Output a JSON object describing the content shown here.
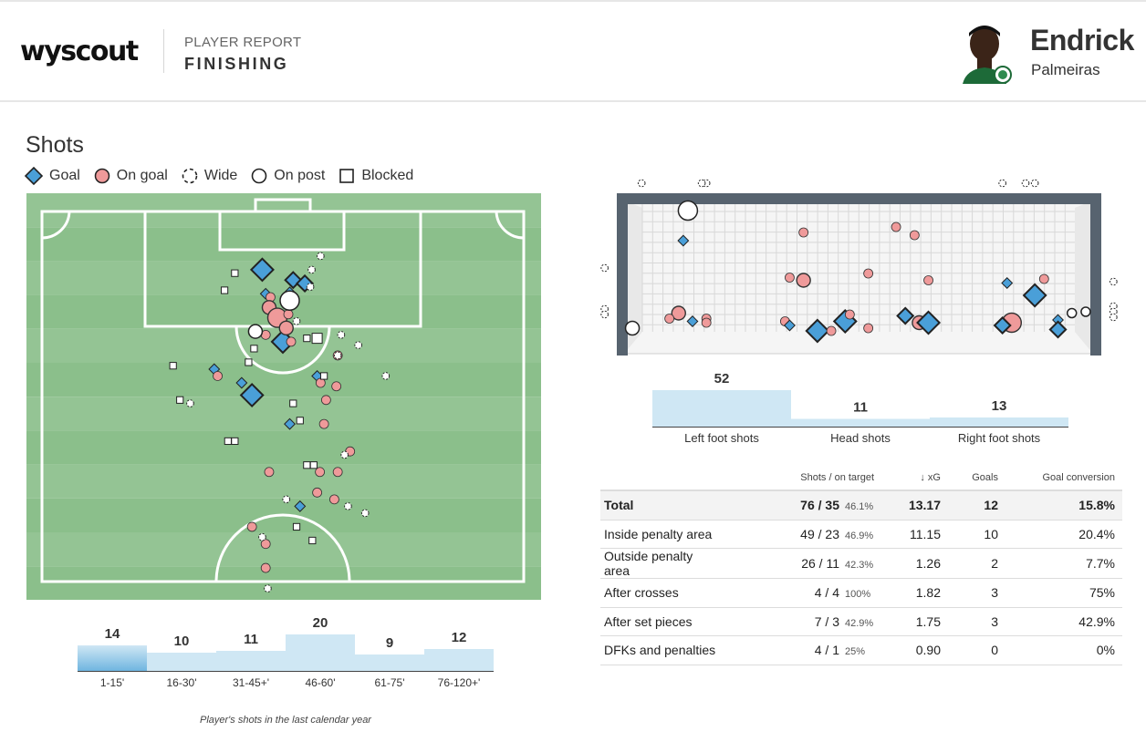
{
  "header": {
    "logo_text": "wyscout",
    "report_label": "PLAYER REPORT",
    "report_subtitle": "FINISHING",
    "player_name": "Endrick",
    "team": "Palmeiras"
  },
  "section_title": "Shots",
  "legend": [
    {
      "key": "goal",
      "label": "Goal"
    },
    {
      "key": "on_goal",
      "label": "On goal"
    },
    {
      "key": "wide",
      "label": "Wide"
    },
    {
      "key": "on_post",
      "label": "On post"
    },
    {
      "key": "blocked",
      "label": "Blocked"
    }
  ],
  "colors": {
    "goal": "#4a9fd8",
    "on_goal": "#ef9a9a",
    "pitch_light": "#94c494",
    "pitch_dark": "#8bbf8b",
    "frame": "#57636f",
    "bar_light": "#cfe7f4",
    "bar_dark": "#6fb5e0"
  },
  "chart_data": [
    {
      "type": "scatter",
      "title": "Shots",
      "note": "shot map on pitch; x = distance from goal line (m), y = lateral position (m, 0 = centre)",
      "shots": [
        {
          "x": 8.5,
          "y": -3.0,
          "outcome": "goal",
          "size": "l"
        },
        {
          "x": 10.0,
          "y": 1.5,
          "outcome": "goal",
          "size": "m"
        },
        {
          "x": 10.5,
          "y": 3.2,
          "outcome": "goal",
          "size": "m"
        },
        {
          "x": 12.0,
          "y": -2.5,
          "outcome": "goal",
          "size": "s"
        },
        {
          "x": 11.8,
          "y": 1.0,
          "outcome": "goal",
          "size": "s"
        },
        {
          "x": 19.0,
          "y": 0.0,
          "outcome": "goal",
          "size": "l"
        },
        {
          "x": 25.0,
          "y": -6.0,
          "outcome": "goal",
          "size": "s"
        },
        {
          "x": 26.8,
          "y": -4.5,
          "outcome": "goal",
          "size": "l"
        },
        {
          "x": 23.0,
          "y": -10.0,
          "outcome": "goal",
          "size": "s"
        },
        {
          "x": 24.0,
          "y": 5.0,
          "outcome": "goal",
          "size": "s"
        },
        {
          "x": 31.0,
          "y": 1.0,
          "outcome": "goal",
          "size": "s"
        },
        {
          "x": 43.0,
          "y": 2.5,
          "outcome": "goal",
          "size": "s"
        },
        {
          "x": 12.5,
          "y": -1.8,
          "outcome": "on_goal",
          "size": "s"
        },
        {
          "x": 14.0,
          "y": -2.0,
          "outcome": "on_goal",
          "size": "m"
        },
        {
          "x": 15.5,
          "y": -0.8,
          "outcome": "on_goal",
          "size": "l"
        },
        {
          "x": 17.0,
          "y": 0.5,
          "outcome": "on_goal",
          "size": "m"
        },
        {
          "x": 15.0,
          "y": 0.8,
          "outcome": "on_goal",
          "size": "s"
        },
        {
          "x": 18.0,
          "y": -2.5,
          "outcome": "on_goal",
          "size": "s"
        },
        {
          "x": 19.0,
          "y": 1.2,
          "outcome": "on_goal",
          "size": "s"
        },
        {
          "x": 21.0,
          "y": 8.0,
          "outcome": "on_goal",
          "size": "s"
        },
        {
          "x": 24.0,
          "y": -9.5,
          "outcome": "on_goal",
          "size": "s"
        },
        {
          "x": 25.0,
          "y": 5.5,
          "outcome": "on_goal",
          "size": "s"
        },
        {
          "x": 25.5,
          "y": 7.8,
          "outcome": "on_goal",
          "size": "s"
        },
        {
          "x": 27.5,
          "y": 6.3,
          "outcome": "on_goal",
          "size": "s"
        },
        {
          "x": 31.0,
          "y": 6.0,
          "outcome": "on_goal",
          "size": "s"
        },
        {
          "x": 35.0,
          "y": 9.8,
          "outcome": "on_goal",
          "size": "s"
        },
        {
          "x": 38.0,
          "y": -2.0,
          "outcome": "on_goal",
          "size": "s"
        },
        {
          "x": 38.0,
          "y": 5.4,
          "outcome": "on_goal",
          "size": "s"
        },
        {
          "x": 38.0,
          "y": 8.0,
          "outcome": "on_goal",
          "size": "s"
        },
        {
          "x": 41.0,
          "y": 5.0,
          "outcome": "on_goal",
          "size": "s"
        },
        {
          "x": 42.0,
          "y": 7.5,
          "outcome": "on_goal",
          "size": "s"
        },
        {
          "x": 46.0,
          "y": -4.5,
          "outcome": "on_goal",
          "size": "s"
        },
        {
          "x": 48.5,
          "y": -2.5,
          "outcome": "on_goal",
          "size": "s"
        },
        {
          "x": 52.0,
          "y": -2.5,
          "outcome": "on_goal",
          "size": "s"
        },
        {
          "x": 13.0,
          "y": 1.0,
          "outcome": "on_post",
          "size": "l"
        },
        {
          "x": 17.5,
          "y": -4.0,
          "outcome": "on_post",
          "size": "m"
        },
        {
          "x": 6.5,
          "y": 5.5,
          "outcome": "wide",
          "size": "s"
        },
        {
          "x": 8.5,
          "y": 4.2,
          "outcome": "wide",
          "size": "s"
        },
        {
          "x": 11.0,
          "y": 4.0,
          "outcome": "wide",
          "size": "s"
        },
        {
          "x": 16.0,
          "y": 2.0,
          "outcome": "wide",
          "size": "s"
        },
        {
          "x": 18.0,
          "y": 8.5,
          "outcome": "wide",
          "size": "s"
        },
        {
          "x": 19.5,
          "y": 11.0,
          "outcome": "wide",
          "size": "s"
        },
        {
          "x": 21.0,
          "y": 8.0,
          "outcome": "wide",
          "size": "s"
        },
        {
          "x": 24.0,
          "y": 15.0,
          "outcome": "wide",
          "size": "s"
        },
        {
          "x": 28.0,
          "y": -13.5,
          "outcome": "wide",
          "size": "s"
        },
        {
          "x": 35.5,
          "y": 9.0,
          "outcome": "wide",
          "size": "s"
        },
        {
          "x": 42.0,
          "y": 0.5,
          "outcome": "wide",
          "size": "s"
        },
        {
          "x": 43.0,
          "y": 9.5,
          "outcome": "wide",
          "size": "s"
        },
        {
          "x": 44.0,
          "y": 12.0,
          "outcome": "wide",
          "size": "s"
        },
        {
          "x": 47.5,
          "y": -3.0,
          "outcome": "wide",
          "size": "s"
        },
        {
          "x": 55.0,
          "y": -2.2,
          "outcome": "wide",
          "size": "s"
        },
        {
          "x": 9.0,
          "y": -7.0,
          "outcome": "blocked",
          "size": "s"
        },
        {
          "x": 11.5,
          "y": -8.5,
          "outcome": "blocked",
          "size": "s"
        },
        {
          "x": 18.5,
          "y": 3.5,
          "outcome": "blocked",
          "size": "s"
        },
        {
          "x": 18.5,
          "y": 5.0,
          "outcome": "blocked",
          "size": "m"
        },
        {
          "x": 20.0,
          "y": -4.2,
          "outcome": "blocked",
          "size": "s"
        },
        {
          "x": 22.0,
          "y": -5.0,
          "outcome": "blocked",
          "size": "s"
        },
        {
          "x": 22.5,
          "y": -16.0,
          "outcome": "blocked",
          "size": "s"
        },
        {
          "x": 24.0,
          "y": 6.0,
          "outcome": "blocked",
          "size": "s"
        },
        {
          "x": 27.5,
          "y": -15.0,
          "outcome": "blocked",
          "size": "s"
        },
        {
          "x": 28.0,
          "y": 1.5,
          "outcome": "blocked",
          "size": "s"
        },
        {
          "x": 30.5,
          "y": 2.5,
          "outcome": "blocked",
          "size": "s"
        },
        {
          "x": 33.5,
          "y": -8.0,
          "outcome": "blocked",
          "size": "s"
        },
        {
          "x": 33.5,
          "y": -7.0,
          "outcome": "blocked",
          "size": "s"
        },
        {
          "x": 37.0,
          "y": 3.5,
          "outcome": "blocked",
          "size": "s"
        },
        {
          "x": 37.0,
          "y": 4.5,
          "outcome": "blocked",
          "size": "s"
        },
        {
          "x": 46.0,
          "y": 2.0,
          "outcome": "blocked",
          "size": "s"
        },
        {
          "x": 48.0,
          "y": 4.3,
          "outcome": "blocked",
          "size": "s"
        }
      ]
    },
    {
      "type": "scatter",
      "note": "shot placement in goal mouth; x = 0..1 across goal, y = 0..1 height",
      "shots": [
        {
          "x": 0.13,
          "y": 0.94,
          "outcome": "on_post",
          "size": "l"
        },
        {
          "x": 0.12,
          "y": 0.72,
          "outcome": "goal",
          "size": "s"
        },
        {
          "x": 0.38,
          "y": 0.78,
          "outcome": "on_goal",
          "size": "s"
        },
        {
          "x": 0.58,
          "y": 0.82,
          "outcome": "on_goal",
          "size": "s"
        },
        {
          "x": 0.62,
          "y": 0.76,
          "outcome": "on_goal",
          "size": "s"
        },
        {
          "x": 0.35,
          "y": 0.45,
          "outcome": "on_goal",
          "size": "s"
        },
        {
          "x": 0.38,
          "y": 0.43,
          "outcome": "on_goal",
          "size": "m"
        },
        {
          "x": 0.52,
          "y": 0.48,
          "outcome": "on_goal",
          "size": "s"
        },
        {
          "x": 0.65,
          "y": 0.43,
          "outcome": "on_goal",
          "size": "s"
        },
        {
          "x": 0.82,
          "y": 0.41,
          "outcome": "goal",
          "size": "s"
        },
        {
          "x": 0.9,
          "y": 0.44,
          "outcome": "on_goal",
          "size": "s"
        },
        {
          "x": 0.88,
          "y": 0.32,
          "outcome": "goal",
          "size": "l"
        },
        {
          "x": 0.96,
          "y": 0.19,
          "outcome": "on_post",
          "size": "s"
        },
        {
          "x": 0.11,
          "y": 0.19,
          "outcome": "on_goal",
          "size": "m"
        },
        {
          "x": 0.09,
          "y": 0.15,
          "outcome": "on_goal",
          "size": "s"
        },
        {
          "x": 0.14,
          "y": 0.13,
          "outcome": "goal",
          "size": "s"
        },
        {
          "x": 0.17,
          "y": 0.15,
          "outcome": "on_goal",
          "size": "s"
        },
        {
          "x": 0.17,
          "y": 0.12,
          "outcome": "on_goal",
          "size": "s"
        },
        {
          "x": 0.34,
          "y": 0.13,
          "outcome": "on_goal",
          "size": "s"
        },
        {
          "x": 0.35,
          "y": 0.1,
          "outcome": "goal",
          "size": "s"
        },
        {
          "x": 0.41,
          "y": 0.06,
          "outcome": "goal",
          "size": "l"
        },
        {
          "x": 0.44,
          "y": 0.06,
          "outcome": "on_goal",
          "size": "s"
        },
        {
          "x": 0.47,
          "y": 0.13,
          "outcome": "goal",
          "size": "l"
        },
        {
          "x": 0.48,
          "y": 0.18,
          "outcome": "on_goal",
          "size": "s"
        },
        {
          "x": 0.52,
          "y": 0.08,
          "outcome": "on_goal",
          "size": "s"
        },
        {
          "x": 0.6,
          "y": 0.17,
          "outcome": "goal",
          "size": "m"
        },
        {
          "x": 0.63,
          "y": 0.12,
          "outcome": "on_goal",
          "size": "m"
        },
        {
          "x": 0.65,
          "y": 0.12,
          "outcome": "goal",
          "size": "l"
        },
        {
          "x": 0.83,
          "y": 0.12,
          "outcome": "on_goal",
          "size": "l"
        },
        {
          "x": 0.81,
          "y": 0.1,
          "outcome": "goal",
          "size": "m"
        },
        {
          "x": 0.93,
          "y": 0.14,
          "outcome": "goal",
          "size": "s"
        },
        {
          "x": 0.93,
          "y": 0.07,
          "outcome": "goal",
          "size": "m"
        },
        {
          "x": 0.01,
          "y": 0.08,
          "outcome": "on_post",
          "size": "m"
        },
        {
          "x": 0.99,
          "y": 0.2,
          "outcome": "on_post",
          "size": "s"
        }
      ],
      "wide_shots": [
        {
          "x": 0.03,
          "y": 1.14
        },
        {
          "x": 0.17,
          "y": 1.14
        },
        {
          "x": 0.16,
          "y": 1.14
        },
        {
          "x": 0.81,
          "y": 1.14
        },
        {
          "x": 0.86,
          "y": 1.14
        },
        {
          "x": 0.88,
          "y": 1.14
        },
        {
          "x": -0.05,
          "y": 0.52
        },
        {
          "x": -0.05,
          "y": 0.22
        },
        {
          "x": -0.05,
          "y": 0.18
        },
        {
          "x": 1.05,
          "y": 0.42
        },
        {
          "x": 1.05,
          "y": 0.24
        },
        {
          "x": 1.05,
          "y": 0.2
        },
        {
          "x": 1.05,
          "y": 0.16
        }
      ]
    },
    {
      "type": "bar",
      "categories": [
        "Left foot shots",
        "Head shots",
        "Right foot shots"
      ],
      "values": [
        52,
        11,
        13
      ],
      "ylim": [
        0,
        52
      ]
    },
    {
      "type": "bar",
      "categories": [
        "1-15'",
        "16-30'",
        "31-45+'",
        "46-60'",
        "61-75'",
        "76-120+'"
      ],
      "values": [
        14,
        10,
        11,
        20,
        9,
        12
      ],
      "ylim": [
        0,
        20
      ],
      "caption": "Player's shots in the last calendar year"
    },
    {
      "type": "table",
      "columns": [
        "",
        "Shots / on target",
        "↓ xG",
        "Goals",
        "Goal conversion"
      ],
      "rows": [
        {
          "label": "Total",
          "shots": "76 / 35",
          "pct": "46.1%",
          "xg": "13.17",
          "goals": "12",
          "conv": "15.8%"
        },
        {
          "label": "Inside penalty area",
          "shots": "49 / 23",
          "pct": "46.9%",
          "xg": "11.15",
          "goals": "10",
          "conv": "20.4%"
        },
        {
          "label": "Outside penalty area",
          "shots": "26 / 11",
          "pct": "42.3%",
          "xg": "1.26",
          "goals": "2",
          "conv": "7.7%"
        },
        {
          "label": "After crosses",
          "shots": "4 / 4",
          "pct": "100%",
          "xg": "1.82",
          "goals": "3",
          "conv": "75%"
        },
        {
          "label": "After set pieces",
          "shots": "7 / 3",
          "pct": "42.9%",
          "xg": "1.75",
          "goals": "3",
          "conv": "42.9%"
        },
        {
          "label": "DFKs and penalties",
          "shots": "4 / 1",
          "pct": "25%",
          "xg": "0.90",
          "goals": "0",
          "conv": "0%"
        }
      ]
    }
  ]
}
